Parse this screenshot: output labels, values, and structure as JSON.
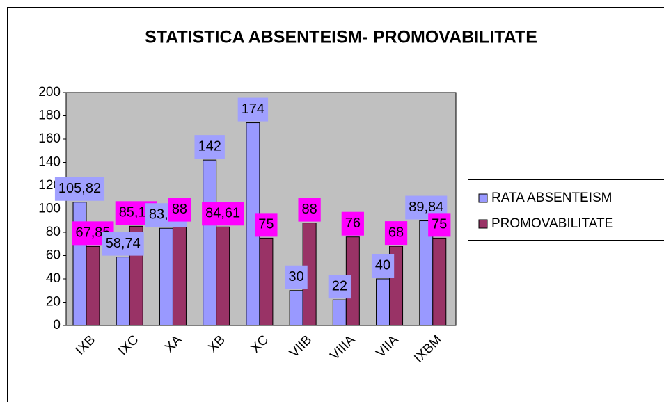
{
  "chart_data": {
    "type": "bar",
    "title": "STATISTICA ABSENTEISM- PROMOVABILITATE",
    "categories": [
      "IXB",
      "IXC",
      "XA",
      "XB",
      "XC",
      "VIIB",
      "VIIIA",
      "VIIA",
      "IXBM"
    ],
    "series": [
      {
        "name": "RATA ABSENTEISM",
        "color": "#9999ff",
        "label_color": "#a0a0ff",
        "values": [
          105.82,
          58.74,
          83.44,
          142,
          174,
          30,
          22,
          40,
          89.84
        ],
        "value_labels": [
          "105,82",
          "58,74",
          "83,44",
          "142",
          "174",
          "30",
          "22",
          "40",
          "89,84"
        ]
      },
      {
        "name": "PROMOVABILITATE",
        "color": "#993366",
        "label_color": "#ff00ff",
        "values": [
          67.85,
          85.18,
          88,
          84.61,
          75,
          88,
          76,
          68,
          75
        ],
        "value_labels": [
          "67,85",
          "85,18",
          "88",
          "84,61",
          "75",
          "88",
          "76",
          "68",
          "75"
        ]
      }
    ],
    "ylim": [
      0,
      200
    ],
    "yticks": [
      0,
      20,
      40,
      60,
      80,
      100,
      120,
      140,
      160,
      180,
      200
    ],
    "grid": false,
    "legend": "right",
    "plot_background": "#c0c0c0"
  }
}
